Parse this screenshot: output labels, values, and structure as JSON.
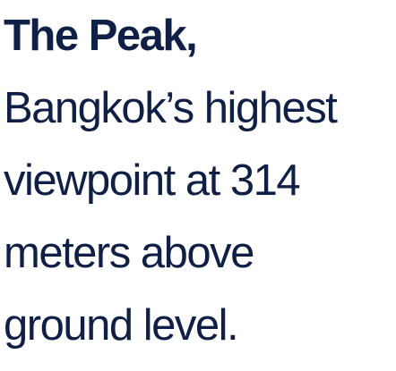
{
  "caption": {
    "title": "The Peak,",
    "lines": [
      "Bangkok’s highest",
      "viewpoint at 314",
      "meters above",
      "ground level."
    ]
  },
  "colors": {
    "text": "#0f1f45",
    "background": "#ffffff"
  }
}
